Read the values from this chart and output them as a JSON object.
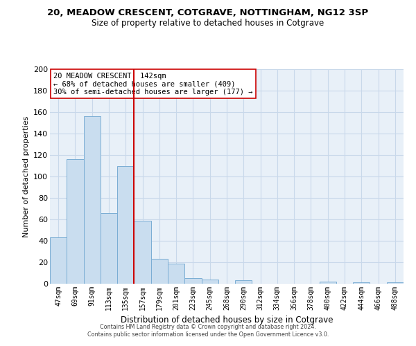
{
  "title": "20, MEADOW CRESCENT, COTGRAVE, NOTTINGHAM, NG12 3SP",
  "subtitle": "Size of property relative to detached houses in Cotgrave",
  "xlabel": "Distribution of detached houses by size in Cotgrave",
  "ylabel": "Number of detached properties",
  "bar_labels": [
    "47sqm",
    "69sqm",
    "91sqm",
    "113sqm",
    "135sqm",
    "157sqm",
    "179sqm",
    "201sqm",
    "223sqm",
    "245sqm",
    "268sqm",
    "290sqm",
    "312sqm",
    "334sqm",
    "356sqm",
    "378sqm",
    "400sqm",
    "422sqm",
    "444sqm",
    "466sqm",
    "488sqm"
  ],
  "bar_values": [
    43,
    116,
    156,
    66,
    110,
    59,
    23,
    19,
    5,
    4,
    0,
    3,
    0,
    0,
    0,
    0,
    2,
    0,
    1,
    0,
    1
  ],
  "bar_color": "#c9ddef",
  "bar_edge_color": "#7aadd4",
  "vline_index": 4,
  "vline_color": "#cc0000",
  "ylim": [
    0,
    200
  ],
  "yticks": [
    0,
    20,
    40,
    60,
    80,
    100,
    120,
    140,
    160,
    180,
    200
  ],
  "annotation_title": "20 MEADOW CRESCENT: 142sqm",
  "annotation_line1": "← 68% of detached houses are smaller (409)",
  "annotation_line2": "30% of semi-detached houses are larger (177) →",
  "footer_line1": "Contains HM Land Registry data © Crown copyright and database right 2024.",
  "footer_line2": "Contains public sector information licensed under the Open Government Licence v3.0.",
  "grid_color": "#c8d8ea",
  "background_color": "#e8f0f8"
}
